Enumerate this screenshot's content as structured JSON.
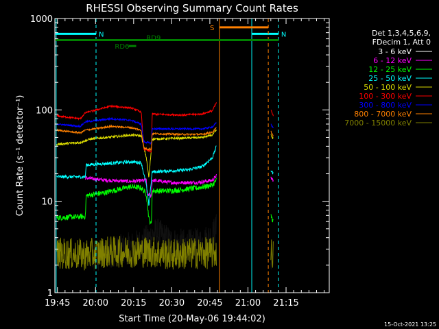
{
  "chart_data": {
    "type": "line",
    "title": "RHESSI Observing Summary Count Rates",
    "xlabel": "Start Time (20-May-06 19:44:02)",
    "ylabel": "Count Rate (s⁻¹ detector⁻¹)",
    "footer_date": "15-Oct-2021 13:25",
    "y_scale": "log",
    "ylim": [
      1,
      1000
    ],
    "xlim_minutes": [
      0,
      108
    ],
    "x_ticks": [
      {
        "t": 1,
        "label": "19:45"
      },
      {
        "t": 16,
        "label": "20:00"
      },
      {
        "t": 31,
        "label": "20:15"
      },
      {
        "t": 46,
        "label": "20:30"
      },
      {
        "t": 61,
        "label": "20:45"
      },
      {
        "t": 76,
        "label": "21:00"
      },
      {
        "t": 91,
        "label": "21:15"
      }
    ],
    "y_ticks": [
      {
        "v": 1,
        "label": "1"
      },
      {
        "v": 10,
        "label": "10"
      },
      {
        "v": 100,
        "label": "100"
      },
      {
        "v": 1000,
        "label": "1000"
      }
    ],
    "legend": {
      "header": [
        "Det 1,3,4,5,6,9,",
        "FDecim 1, Att 0"
      ],
      "position": "right",
      "entries": [
        {
          "label": "3 - 6 keV",
          "color": "#000000"
        },
        {
          "label": "6 - 12 keV",
          "color": "#ff00ff"
        },
        {
          "label": "12 - 25 keV",
          "color": "#00ff00"
        },
        {
          "label": "25 - 50 keV",
          "color": "#00ffff"
        },
        {
          "label": "50 - 100 keV",
          "color": "#dddd00"
        },
        {
          "label": "100 - 300 keV",
          "color": "#ff0000"
        },
        {
          "label": "300 - 800 keV",
          "color": "#0000ff"
        },
        {
          "label": "800 - 7000 keV",
          "color": "#ff8000"
        },
        {
          "label": "7000 - 15000 keV",
          "color": "#808000"
        }
      ]
    },
    "series": [
      {
        "name": "3 - 6 keV",
        "color": "#000000",
        "points": [
          [
            14.7,
            2.2
          ],
          [
            22,
            2.8
          ],
          [
            28,
            3.0
          ],
          [
            34,
            3.4
          ],
          [
            40,
            4.5
          ],
          [
            46,
            3.5
          ],
          [
            52,
            3.3
          ],
          [
            58,
            3.5
          ],
          [
            62,
            4.2
          ],
          [
            63.6,
            5
          ]
        ],
        "segments2": [
          [
            85,
            2.5
          ],
          [
            86,
            2.5
          ]
        ],
        "noise": 0.35
      },
      {
        "name": "6 - 12 keV",
        "color": "#ff00ff",
        "points": [
          [
            12,
            18
          ],
          [
            20,
            17
          ],
          [
            30,
            16.5
          ],
          [
            36,
            17
          ],
          [
            36.3,
            12
          ],
          [
            38,
            11.5
          ],
          [
            38.3,
            17
          ],
          [
            46,
            16
          ],
          [
            56,
            16
          ],
          [
            62,
            17
          ],
          [
            63.6,
            19
          ]
        ],
        "segments2": [
          [
            85,
            18
          ],
          [
            86,
            17
          ]
        ],
        "noise": 0.04
      },
      {
        "name": "12 - 25 keV",
        "color": "#00ff00",
        "points": [
          [
            0.7,
            6.6
          ],
          [
            10,
            6.8
          ],
          [
            12,
            6.8
          ],
          [
            12.3,
            11.5
          ],
          [
            20,
            12.5
          ],
          [
            30,
            14.5
          ],
          [
            34,
            14
          ],
          [
            36,
            12
          ],
          [
            37,
            6.5
          ],
          [
            38,
            5.5
          ],
          [
            38.3,
            13
          ],
          [
            46,
            13
          ],
          [
            56,
            14
          ],
          [
            62,
            15
          ],
          [
            63.6,
            17
          ]
        ],
        "segments2": [
          [
            85,
            7
          ],
          [
            86,
            6
          ]
        ],
        "noise": 0.06
      },
      {
        "name": "25 - 50 keV",
        "color": "#00ffff",
        "points": [
          [
            0.7,
            18.5
          ],
          [
            12,
            18.5
          ],
          [
            12.3,
            25
          ],
          [
            30,
            27
          ],
          [
            34,
            26.5
          ],
          [
            36,
            15
          ],
          [
            37,
            9
          ],
          [
            38.3,
            21
          ],
          [
            52,
            22
          ],
          [
            58,
            24
          ],
          [
            62,
            30
          ],
          [
            63.6,
            40
          ]
        ],
        "segments2": [
          [
            85,
            22
          ],
          [
            86,
            20
          ]
        ],
        "noise": 0.035
      },
      {
        "name": "50 - 100 keV",
        "color": "#dddd00",
        "points": [
          [
            0.7,
            42
          ],
          [
            10,
            44
          ],
          [
            14,
            48
          ],
          [
            30,
            53
          ],
          [
            34,
            52
          ],
          [
            36,
            30
          ],
          [
            37,
            18
          ],
          [
            38.3,
            48
          ],
          [
            50,
            49
          ],
          [
            58,
            50
          ],
          [
            62,
            53
          ],
          [
            63.6,
            60
          ]
        ],
        "segments2": [
          [
            85,
            53
          ],
          [
            86,
            48
          ]
        ],
        "noise": 0.025
      },
      {
        "name": "100 - 300 keV",
        "color": "#ff0000",
        "points": [
          [
            0.7,
            86
          ],
          [
            10,
            80
          ],
          [
            12,
            93
          ],
          [
            22,
            110
          ],
          [
            30,
            105
          ],
          [
            34,
            95
          ],
          [
            35,
            37
          ],
          [
            38,
            35
          ],
          [
            38.3,
            90
          ],
          [
            50,
            88
          ],
          [
            58,
            90
          ],
          [
            62,
            98
          ],
          [
            63.6,
            120
          ]
        ],
        "segments2": [
          [
            85,
            100
          ],
          [
            86,
            85
          ]
        ],
        "noise": 0.02
      },
      {
        "name": "300 - 800 keV",
        "color": "#0000ff",
        "points": [
          [
            0.7,
            70
          ],
          [
            10,
            66
          ],
          [
            12,
            74
          ],
          [
            22,
            80
          ],
          [
            30,
            77
          ],
          [
            34,
            70
          ],
          [
            35,
            45
          ],
          [
            38,
            43
          ],
          [
            38.3,
            62
          ],
          [
            50,
            62
          ],
          [
            58,
            62
          ],
          [
            62,
            65
          ],
          [
            63.6,
            72
          ]
        ],
        "segments2": [
          [
            85,
            70
          ],
          [
            86,
            63
          ]
        ],
        "noise": 0.02
      },
      {
        "name": "800 - 7000 keV",
        "color": "#ff8000",
        "points": [
          [
            0.7,
            60
          ],
          [
            10,
            56
          ],
          [
            12,
            60
          ],
          [
            22,
            66
          ],
          [
            30,
            64
          ],
          [
            34,
            60
          ],
          [
            35,
            38
          ],
          [
            38,
            37
          ],
          [
            38.3,
            55
          ],
          [
            50,
            54
          ],
          [
            58,
            54
          ],
          [
            62,
            57
          ],
          [
            63.6,
            64
          ]
        ],
        "segments2": [
          [
            85,
            58
          ],
          [
            86,
            52
          ]
        ],
        "noise": 0.02
      },
      {
        "name": "7000 - 15000 keV",
        "color": "#808000",
        "points": [
          [
            0.7,
            2.7
          ],
          [
            12,
            2.6
          ],
          [
            20,
            2.8
          ],
          [
            30,
            2.8
          ],
          [
            38,
            2.8
          ],
          [
            46,
            2.6
          ],
          [
            54,
            2.7
          ],
          [
            62,
            2.7
          ],
          [
            63.6,
            2.8
          ]
        ],
        "segments2": [
          [
            85,
            2.7
          ],
          [
            86,
            2.7
          ]
        ],
        "noise": 0.35
      }
    ],
    "annotations": [
      {
        "label": "N",
        "color": "#00ffff",
        "kind": "bar",
        "t0": 0.2,
        "t1": 16.2,
        "v": 680,
        "vline_solid": 0.5,
        "vline_dashed": 16.2
      },
      {
        "label": "N",
        "color": "#00ffff",
        "kind": "bar",
        "t0": 77.5,
        "t1": 88,
        "v": 680,
        "vline_solid": 77.5,
        "vline_dashed": 88
      },
      {
        "label": "S",
        "color": "#ff8000",
        "kind": "bar",
        "t0": 64.8,
        "t1": 84,
        "v": 800,
        "vline_solid": 64.8,
        "vline_dashed": 84
      },
      {
        "label": "RD6",
        "color": "#008000",
        "kind": "bar",
        "t0": 29,
        "t1": 32,
        "v": 500
      },
      {
        "label": "RD9",
        "color": "#008000",
        "kind": "bar",
        "t0": 0.2,
        "t1": 88,
        "v": 580
      }
    ]
  }
}
